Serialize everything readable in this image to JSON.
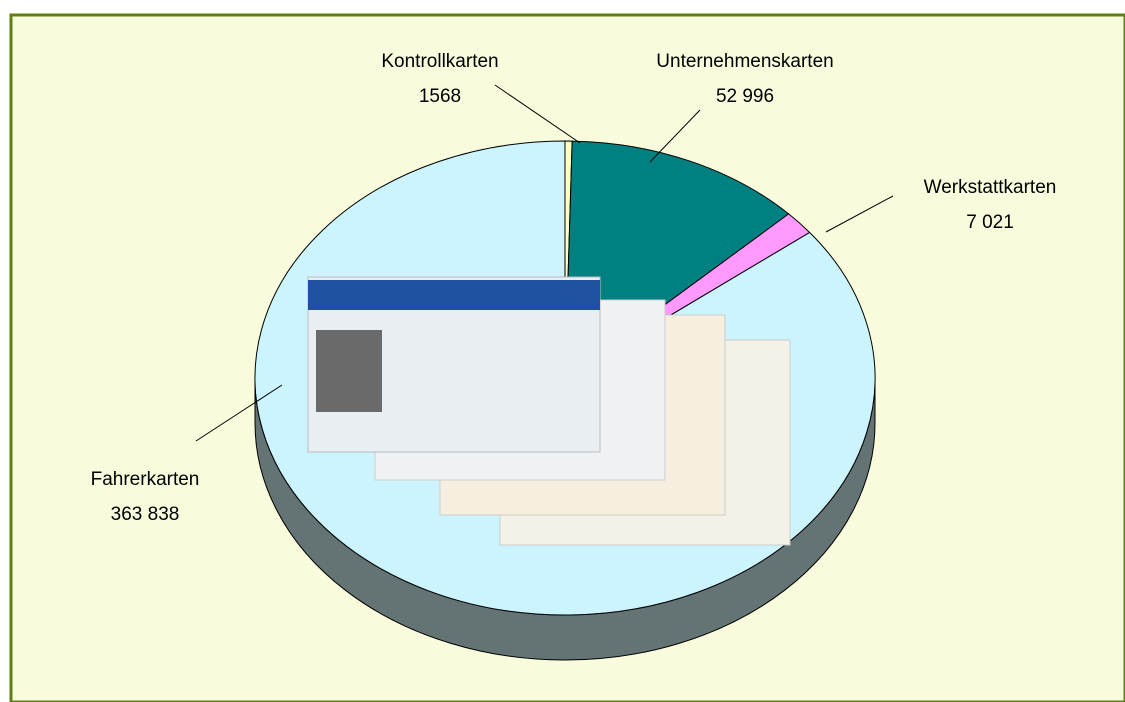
{
  "chart_data": {
    "type": "pie",
    "categories": [
      "Kontrollkarten",
      "Unternehmenskarten",
      "Werkstattkarten",
      "Fahrerkarten"
    ],
    "values": [
      1568,
      52996,
      7021,
      363838
    ],
    "value_labels": [
      "1568",
      "52 996",
      "7 021",
      "363 838"
    ],
    "colors": [
      "#ffffc0",
      "#008080",
      "#ff99ff",
      "#ccf4ff"
    ]
  }
}
